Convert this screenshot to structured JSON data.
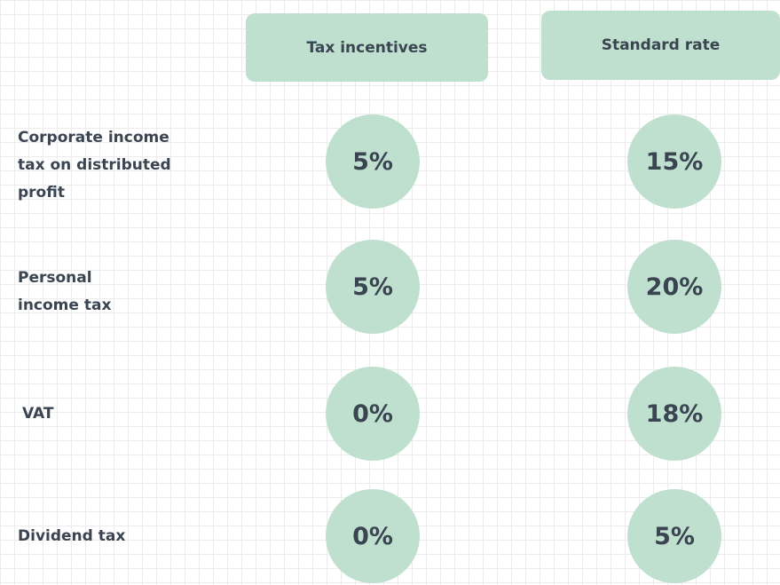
{
  "table": {
    "columns": [
      "Tax incentives",
      "Standard rate"
    ],
    "rows": [
      {
        "label": [
          "Corporate income",
          "tax on distributed",
          "profit"
        ],
        "values": [
          "5%",
          "15%"
        ]
      },
      {
        "label": [
          "Personal",
          "income tax"
        ],
        "values": [
          "5%",
          "20%"
        ]
      },
      {
        "label": [
          "VAT"
        ],
        "values": [
          "0%",
          "18%"
        ]
      },
      {
        "label": [
          "Dividend tax"
        ],
        "values": [
          "0%",
          "5%"
        ]
      }
    ]
  }
}
